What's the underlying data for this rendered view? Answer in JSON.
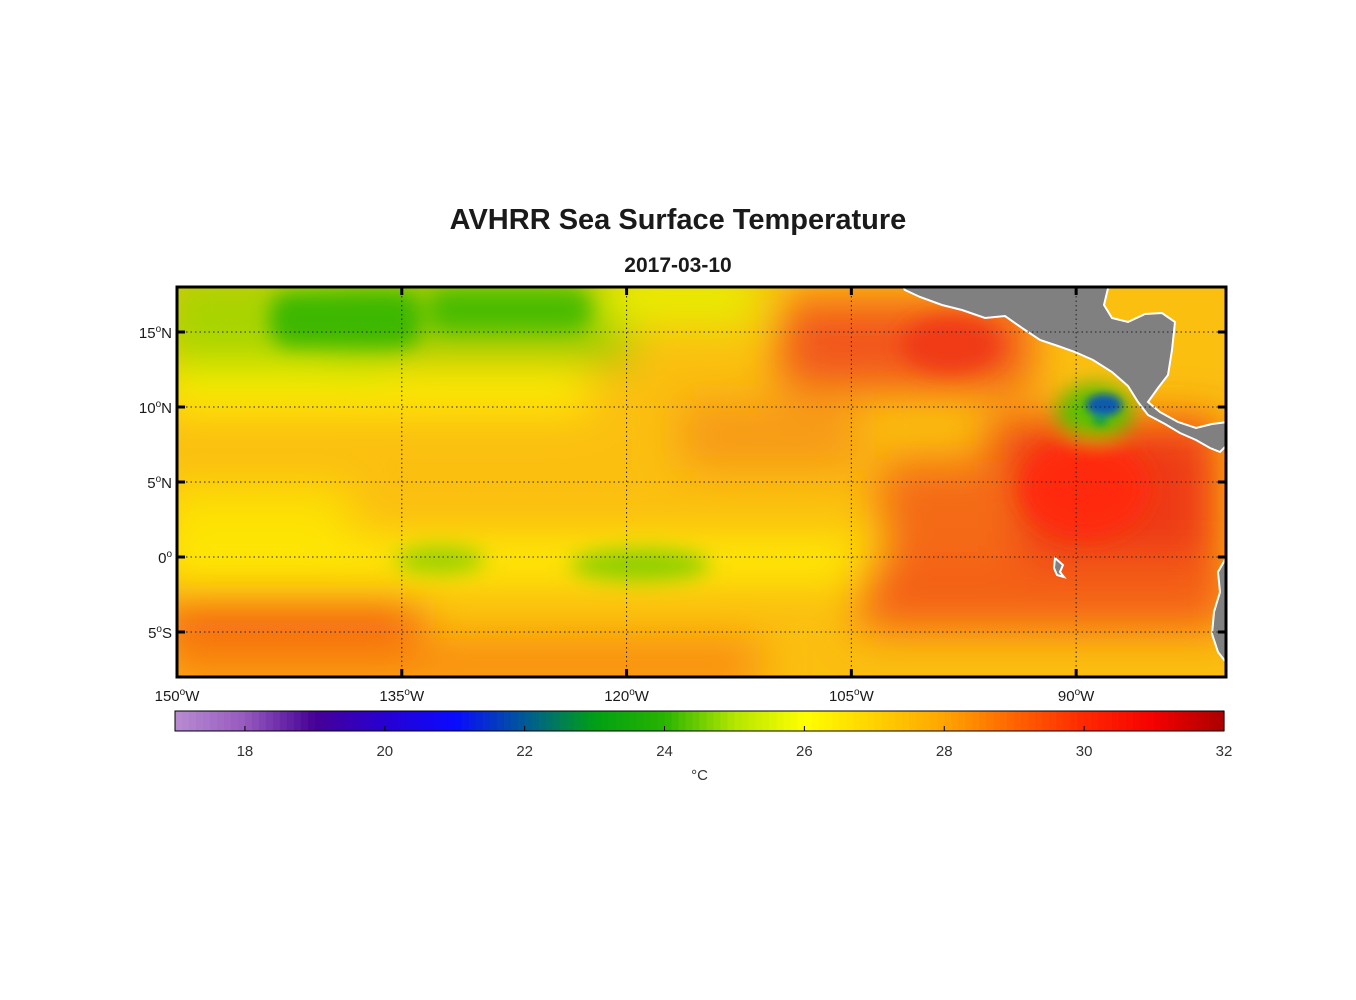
{
  "title": "AVHRR Sea Surface Temperature",
  "subtitle": "2017-03-10",
  "chart_data": {
    "type": "heatmap",
    "title": "AVHRR Sea Surface Temperature",
    "subtitle": "2017-03-10",
    "lon_range": [
      -150,
      -80
    ],
    "lat_range": [
      -8,
      18
    ],
    "grid": true,
    "x_ticks": [
      {
        "value": -150,
        "label": "150°W",
        "num": "150",
        "hemi": "W"
      },
      {
        "value": -135,
        "label": "135°W",
        "num": "135",
        "hemi": "W"
      },
      {
        "value": -120,
        "label": "120°W",
        "num": "120",
        "hemi": "W"
      },
      {
        "value": -105,
        "label": "105°W",
        "num": "105",
        "hemi": "W"
      },
      {
        "value": -90,
        "label": "90°W",
        "num": "90",
        "hemi": "W"
      }
    ],
    "y_ticks": [
      {
        "value": 15,
        "label": "15°N",
        "num": "15",
        "hemi": "N"
      },
      {
        "value": 10,
        "label": "10°N",
        "num": "10",
        "hemi": "N"
      },
      {
        "value": 5,
        "label": "5°N",
        "num": "5",
        "hemi": "N"
      },
      {
        "value": 0,
        "label": "0°",
        "num": "0",
        "hemi": ""
      },
      {
        "value": -5,
        "label": "5°S",
        "num": "5",
        "hemi": "S"
      }
    ],
    "colorbar": {
      "range": [
        17,
        32
      ],
      "ticks": [
        18,
        20,
        22,
        24,
        26,
        28,
        30
      ],
      "end_label": "32",
      "unit": "°C",
      "orientation": "horizontal",
      "placement": "bottom"
    },
    "land_color": "#808080",
    "features": [
      {
        "name": "cool tongue north",
        "region": "north of 13°N, 150°W–123°W",
        "value_c": 24
      },
      {
        "name": "equatorial cold tongue",
        "region": "along 0°, 130°W–115°W",
        "value_c": 25
      },
      {
        "name": "warm pool east",
        "region": "0°–10°N, 95°W–83°W",
        "value_c": 30
      },
      {
        "name": "coastal cool spot",
        "region": "10°N, 90°W",
        "value_c": 22
      },
      {
        "name": "warm southwest",
        "region": "south of 5°S, 150°W–135°W",
        "value_c": 29
      }
    ]
  }
}
